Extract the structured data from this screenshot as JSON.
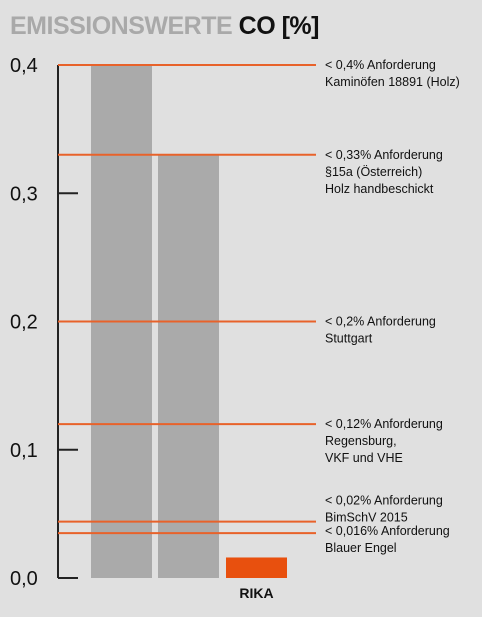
{
  "chart_data": {
    "type": "bar",
    "title_part1": "EMISSIONSWERTE",
    "title_part2": "CO [%]",
    "ylim": [
      0,
      0.4
    ],
    "yticks": [
      {
        "value": 0.0,
        "label": "0,0"
      },
      {
        "value": 0.1,
        "label": "0,1"
      },
      {
        "value": 0.2,
        "label": "0,2"
      },
      {
        "value": 0.3,
        "label": "0,3"
      },
      {
        "value": 0.4,
        "label": "0,4"
      }
    ],
    "bars": [
      {
        "value": 0.4,
        "label": "",
        "color": "#aaaaaa"
      },
      {
        "value": 0.33,
        "label": "",
        "color": "#aaaaaa"
      },
      {
        "value": 0.016,
        "label": "RIKA",
        "color": "#e8500e"
      }
    ],
    "reference_lines": [
      {
        "value": 0.4,
        "lines": [
          "< 0,4% Anforderung",
          "Kaminöfen 18891 (Holz)"
        ]
      },
      {
        "value": 0.33,
        "lines": [
          "< 0,33% Anforderung",
          "§15a (Österreich)",
          "Holz handbeschickt"
        ]
      },
      {
        "value": 0.2,
        "lines": [
          "< 0,2% Anforderung",
          "Stuttgart"
        ]
      },
      {
        "value": 0.12,
        "lines": [
          "< 0,12% Anforderung",
          "Regensburg,",
          "VKF und VHE"
        ]
      },
      {
        "value": 0.044,
        "lines": [
          "< 0,02% Anforderung",
          "BimSchV 2015"
        ]
      },
      {
        "value": 0.035,
        "lines": [
          "< 0,016% Anforderung",
          "Blauer Engel"
        ]
      }
    ],
    "colors": {
      "reference_line": "#e8622a",
      "axis": "#222222"
    }
  }
}
